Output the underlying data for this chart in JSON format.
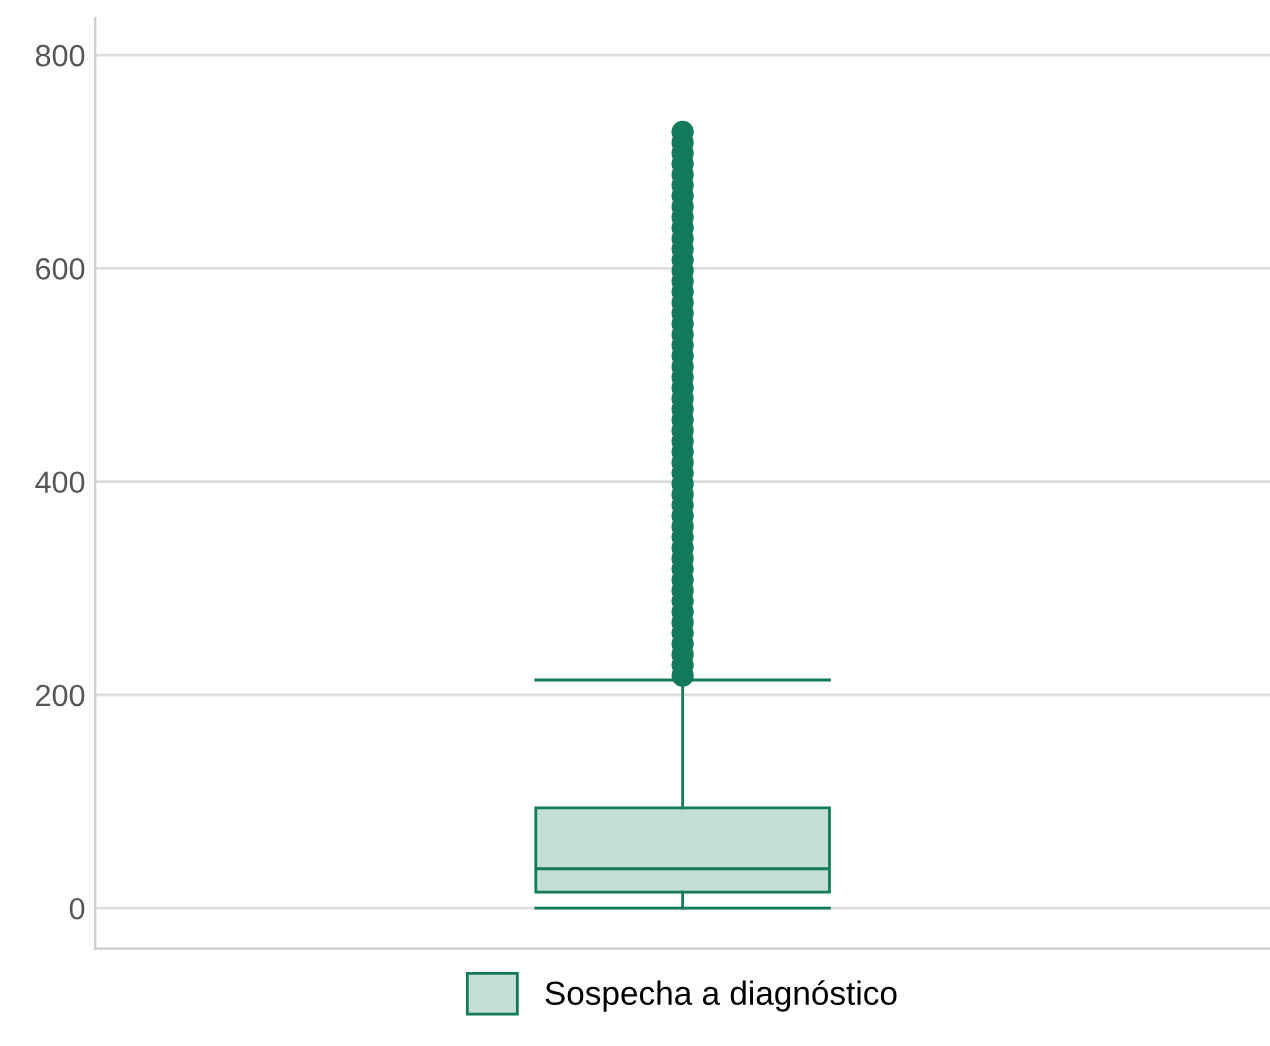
{
  "chart_data": {
    "type": "box",
    "categories": [
      null
    ],
    "series": [
      {
        "name": "Sospecha a diagnóstico",
        "color": "#137a5b",
        "boxes": [
          {
            "low": 0,
            "q1": 15,
            "median": 37,
            "q3": 94,
            "high": 214,
            "outliers": [
              218,
              228,
              238,
              248,
              258,
              268,
              278,
              288,
              298,
              308,
              318,
              328,
              338,
              348,
              358,
              368,
              378,
              388,
              398,
              408,
              418,
              428,
              438,
              448,
              458,
              468,
              478,
              488,
              498,
              508,
              518,
              528,
              538,
              548,
              558,
              568,
              578,
              588,
              598,
              608,
              618,
              628,
              638,
              648,
              658,
              668,
              678,
              688,
              698,
              708,
              718,
              728
            ]
          }
        ]
      }
    ],
    "ylim": [
      -38,
      835
    ],
    "yticks": [
      0,
      200,
      400,
      600,
      800
    ],
    "grid": "y",
    "legend": "bottom",
    "marker": "circle"
  }
}
